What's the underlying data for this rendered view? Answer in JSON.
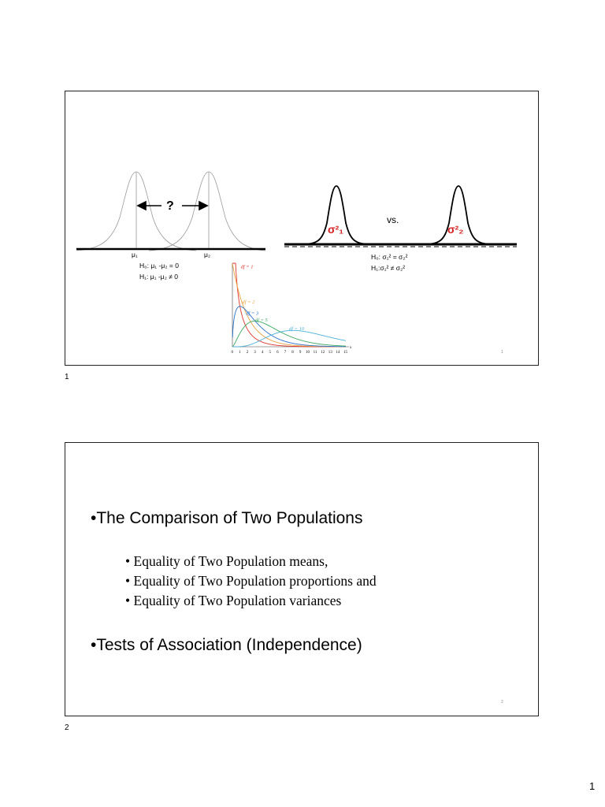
{
  "slide1": {
    "left_figure": {
      "question_mark": "?",
      "mu1_label": "μ₁",
      "mu2_label": "μ₂",
      "h0": "H₀: μ₁ -μ₂ = 0",
      "h1": "H₁: μ₁ -μ₂ ≠ 0"
    },
    "right_figure": {
      "sigma1_label": "σ²₁",
      "sigma2_label": "σ²₂",
      "vs_label": "vs.",
      "h0": "H₀: σ₁² = σ₂²",
      "h1": "H₁:σ₁² ≠ σ₂²"
    },
    "chi_chart": {
      "df_labels": [
        "df = 1",
        "df = 2",
        "df = 3",
        "df = 5",
        "df = 10"
      ],
      "axis_variable": "x",
      "tick_labels": [
        "0",
        "1",
        "2",
        "3",
        "4",
        "5",
        "6",
        "7",
        "8",
        "9",
        "10",
        "11",
        "12",
        "13",
        "14",
        "15"
      ]
    },
    "corner_number": "1"
  },
  "slide1_label": "1",
  "slide2": {
    "bullet1": "•The Comparison of Two Populations",
    "sub_bullets": [
      "• Equality of Two Population means,",
      "• Equality of Two Population proportions and",
      "• Equality of Two Population variances"
    ],
    "bullet2": "•Tests of Association (Independence)",
    "corner_number": "2"
  },
  "slide2_label": "2",
  "page_number": "1",
  "colors": {
    "sigma_red": "#d62020",
    "df1": "#e0322a",
    "df2": "#e8a040",
    "df3": "#2a6fc9",
    "df5": "#3aa860",
    "df10": "#4ab0d8"
  }
}
